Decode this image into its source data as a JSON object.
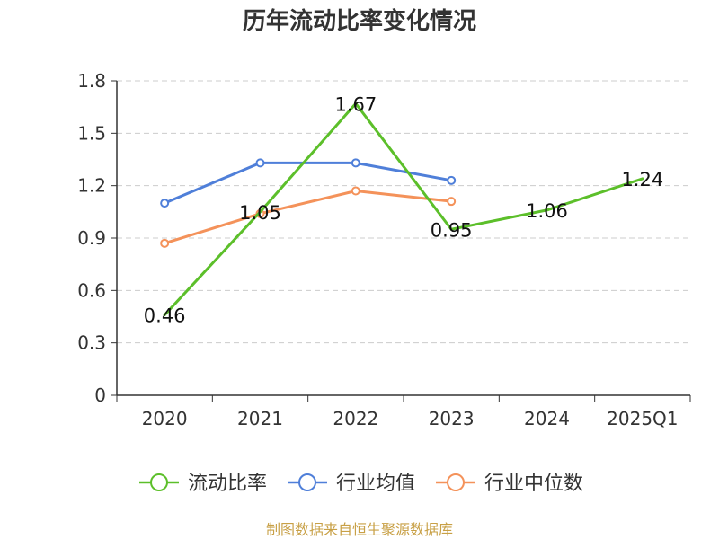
{
  "chart_data": {
    "type": "line",
    "title": "历年流动比率变化情况",
    "categories": [
      "2020",
      "2021",
      "2022",
      "2023",
      "2024",
      "2025Q1"
    ],
    "ylim": [
      0,
      1.8
    ],
    "yticks": [
      "0",
      "0.3",
      "0.6",
      "0.9",
      "1.2",
      "1.5",
      "1.8"
    ],
    "grid": true,
    "legend_position": "bottom",
    "series": [
      {
        "name": "流动比率",
        "color": "#5cbf2a",
        "values": [
          0.46,
          1.05,
          1.67,
          0.95,
          1.06,
          1.24
        ],
        "labels": [
          "0.46",
          "1.05",
          "1.67",
          "0.95",
          "1.06",
          "1.24"
        ],
        "show_markers": false
      },
      {
        "name": "行业均值",
        "color": "#4f7fd9",
        "values": [
          1.1,
          1.33,
          1.33,
          1.23,
          null,
          null
        ],
        "show_markers": true
      },
      {
        "name": "行业中位数",
        "color": "#f4925a",
        "values": [
          0.87,
          1.04,
          1.17,
          1.11,
          null,
          null
        ],
        "show_markers": true
      }
    ]
  },
  "footer": {
    "source": "制图数据来自恒生聚源数据库",
    "source_color": "#c8a046"
  }
}
